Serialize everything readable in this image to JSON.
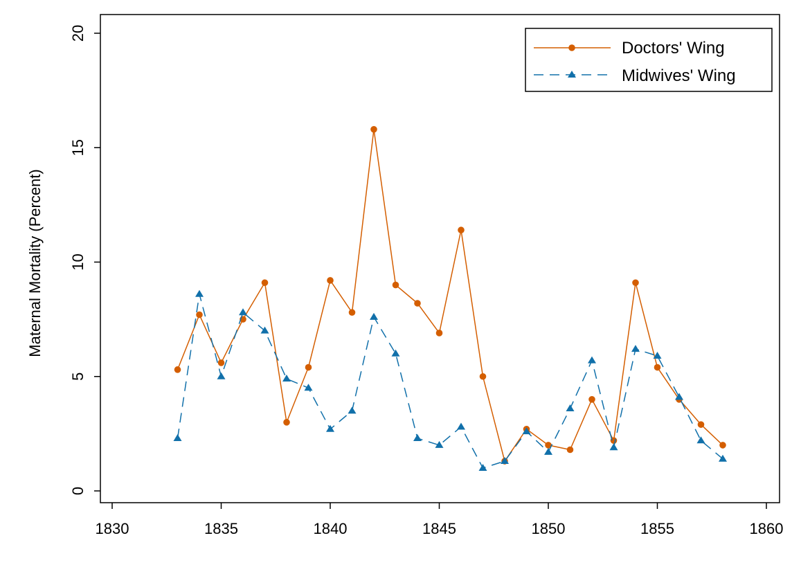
{
  "chart_data": {
    "type": "line",
    "title": "",
    "xlabel": "",
    "ylabel": "Maternal Mortality (Percent)",
    "xlim": [
      1830,
      1860
    ],
    "ylim": [
      0,
      20
    ],
    "xticks": [
      "1830",
      "1835",
      "1840",
      "1845",
      "1850",
      "1855",
      "1860"
    ],
    "yticks": [
      "0",
      "5",
      "10",
      "15",
      "20"
    ],
    "grid": false,
    "legend_position": "top-right",
    "x": [
      1833,
      1834,
      1835,
      1836,
      1837,
      1838,
      1839,
      1840,
      1841,
      1842,
      1843,
      1844,
      1845,
      1846,
      1847,
      1848,
      1849,
      1850,
      1851,
      1852,
      1853,
      1854,
      1855,
      1856,
      1857,
      1858
    ],
    "series": [
      {
        "name": "Doctors' Wing",
        "color": "#d45e00",
        "style": "solid",
        "marker": "circle",
        "values": [
          5.3,
          7.7,
          5.6,
          7.5,
          9.1,
          3.0,
          5.4,
          9.2,
          7.8,
          15.8,
          9.0,
          8.2,
          6.9,
          11.4,
          5.0,
          1.3,
          2.7,
          2.0,
          1.8,
          4.0,
          2.2,
          9.1,
          5.4,
          4.0,
          2.9,
          2.0
        ]
      },
      {
        "name": "Midwives' Wing",
        "color": "#1170aa",
        "style": "dashed",
        "marker": "triangle",
        "values": [
          2.3,
          8.6,
          5.0,
          7.8,
          7.0,
          4.9,
          4.5,
          2.7,
          3.5,
          7.6,
          6.0,
          2.3,
          2.0,
          2.8,
          1.0,
          1.3,
          2.6,
          1.7,
          3.6,
          5.7,
          1.9,
          6.2,
          5.9,
          4.1,
          2.2,
          1.4
        ]
      }
    ]
  }
}
